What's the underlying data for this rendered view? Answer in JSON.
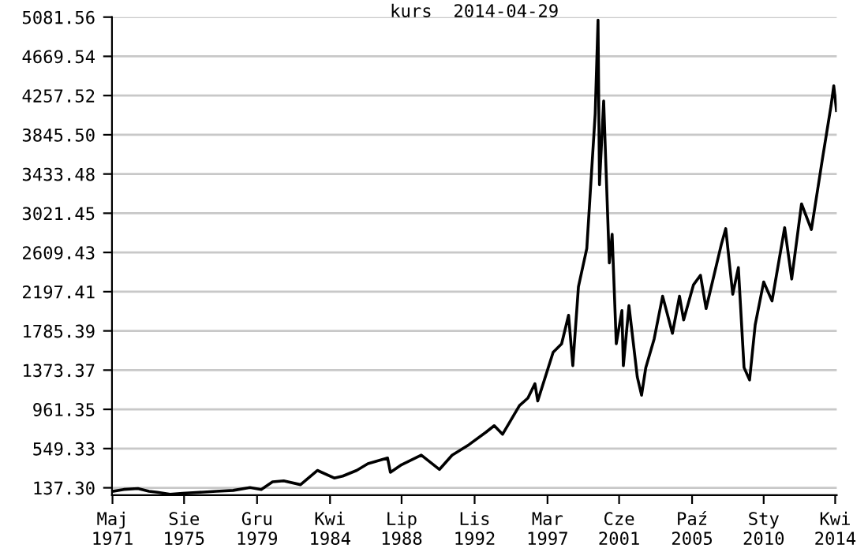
{
  "chart_data": {
    "type": "line",
    "title": "kurs  2014-04-29",
    "x": [
      "1971-05",
      "1972-01",
      "1972-11",
      "1973-07",
      "1974-01",
      "1974-10",
      "1975-07",
      "1976-07",
      "1977-07",
      "1978-07",
      "1979-07",
      "1980-03",
      "1980-11",
      "1981-07",
      "1982-07",
      "1983-07",
      "1984-07",
      "1985-01",
      "1985-11",
      "1986-07",
      "1987-09",
      "1987-11",
      "1988-07",
      "1989-09",
      "1990-10",
      "1991-07",
      "1992-07",
      "1993-07",
      "1994-01",
      "1994-07",
      "1995-07",
      "1996-01",
      "1996-06",
      "1996-08",
      "1997-07",
      "1998-01",
      "1998-06",
      "1998-09",
      "1999-01",
      "1999-07",
      "1999-12-31",
      "2000-03",
      "2000-04",
      "2000-07",
      "2000-11",
      "2001-01",
      "2001-04",
      "2001-08",
      "2001-09",
      "2002-01",
      "2002-07",
      "2002-10",
      "2003-01",
      "2003-07",
      "2004-01",
      "2004-08",
      "2005-01",
      "2005-04",
      "2005-11",
      "2006-04",
      "2006-08",
      "2007-07",
      "2007-10",
      "2008-03",
      "2008-07",
      "2008-11",
      "2009-03",
      "2009-07",
      "2010-01",
      "2010-07",
      "2011-04",
      "2011-09",
      "2012-04",
      "2012-11",
      "2013-07",
      "2014-01",
      "2014-03",
      "2014-04-29"
    ],
    "series": [
      {
        "color": "#000000",
        "values": [
          100,
          120,
          130,
          100,
          90,
          70,
          80,
          90,
          100,
          110,
          140,
          120,
          200,
          210,
          170,
          320,
          240,
          260,
          320,
          390,
          450,
          300,
          380,
          480,
          330,
          480,
          590,
          720,
          790,
          700,
          1000,
          1080,
          1230,
          1050,
          1560,
          1650,
          1950,
          1420,
          2250,
          2650,
          4070,
          5050,
          3320,
          4200,
          2500,
          2800,
          1650,
          2000,
          1420,
          2050,
          1300,
          1110,
          1400,
          1700,
          2150,
          1760,
          2150,
          1900,
          2270,
          2370,
          2020,
          2700,
          2860,
          2170,
          2450,
          1400,
          1270,
          1850,
          2300,
          2100,
          2870,
          2330,
          3120,
          2850,
          3600,
          4150,
          4360,
          4100
        ]
      }
    ],
    "xlim": [
      "1971-04-20",
      "2014-05-05"
    ],
    "xticks": [
      {
        "value": "1971-05",
        "label": "Maj\n1971"
      },
      {
        "value": "1975-08",
        "label": "Sie\n1975"
      },
      {
        "value": "1979-12",
        "label": "Gru\n1979"
      },
      {
        "value": "1984-04",
        "label": "Kwi\n1984"
      },
      {
        "value": "1988-07",
        "label": "Lip\n1988"
      },
      {
        "value": "1992-11",
        "label": "Lis\n1992"
      },
      {
        "value": "1997-03",
        "label": "Mar\n1997"
      },
      {
        "value": "2001-06",
        "label": "Cze\n2001"
      },
      {
        "value": "2005-10",
        "label": "Paź\n2005"
      },
      {
        "value": "2010-01",
        "label": "Sty\n2010"
      },
      {
        "value": "2014-04",
        "label": "Kwi\n2014"
      }
    ],
    "ylim": [
      60,
      5081.56
    ],
    "yticks": [
      {
        "value": 137.3,
        "label": "137.30"
      },
      549.33,
      961.35,
      1373.37,
      1785.39,
      2197.41,
      2609.43,
      3021.45,
      3433.48,
      {
        "value": 3845.5,
        "label": "3845.50"
      },
      4257.52,
      4669.54,
      5081.56
    ],
    "grid": "y",
    "legend": false
  }
}
